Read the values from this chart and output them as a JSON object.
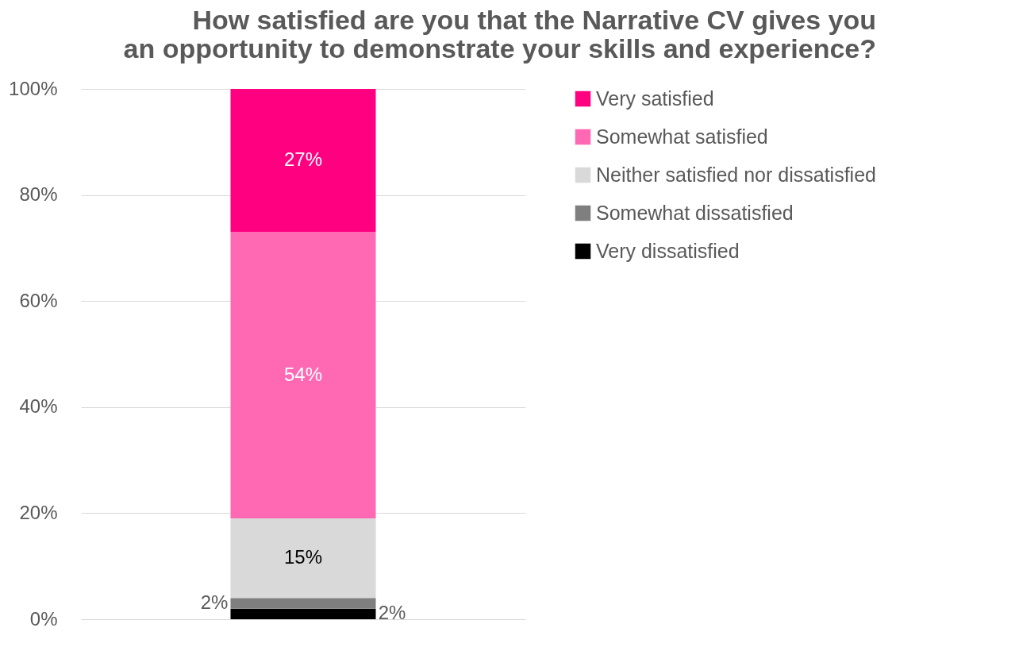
{
  "chart_data": {
    "type": "bar",
    "stacked": true,
    "title": [
      "How satisfied are you that the Narrative CV gives you",
      "an opportunity to demonstrate your skills and experience?"
    ],
    "categories": [
      null
    ],
    "series": [
      {
        "name": "Very dissatisfied",
        "color": "#000000",
        "values": [
          2
        ],
        "value_labels": [
          "2%"
        ]
      },
      {
        "name": "Somewhat dissatisfied",
        "color": "#7f7f7f",
        "values": [
          2
        ],
        "value_labels": [
          "2%"
        ]
      },
      {
        "name": "Neither satisfied nor dissatisfied",
        "color": "#d9d9d9",
        "values": [
          15
        ],
        "value_labels": [
          "15%"
        ]
      },
      {
        "name": "Somewhat satisfied",
        "color": "#ff69b4",
        "values": [
          54
        ],
        "value_labels": [
          "54%"
        ]
      },
      {
        "name": "Very satisfied",
        "color": "#ff0080",
        "values": [
          27
        ],
        "value_labels": [
          "27%"
        ]
      }
    ],
    "ylim": [
      0,
      100
    ],
    "yticks": [
      {
        "value": 0,
        "label": "0%"
      },
      {
        "value": 20,
        "label": "20%"
      },
      {
        "value": 40,
        "label": "40%"
      },
      {
        "value": 60,
        "label": "60%"
      },
      {
        "value": 80,
        "label": "80%"
      },
      {
        "value": 100,
        "label": "100%"
      }
    ],
    "grid": "y",
    "legend": "right"
  }
}
